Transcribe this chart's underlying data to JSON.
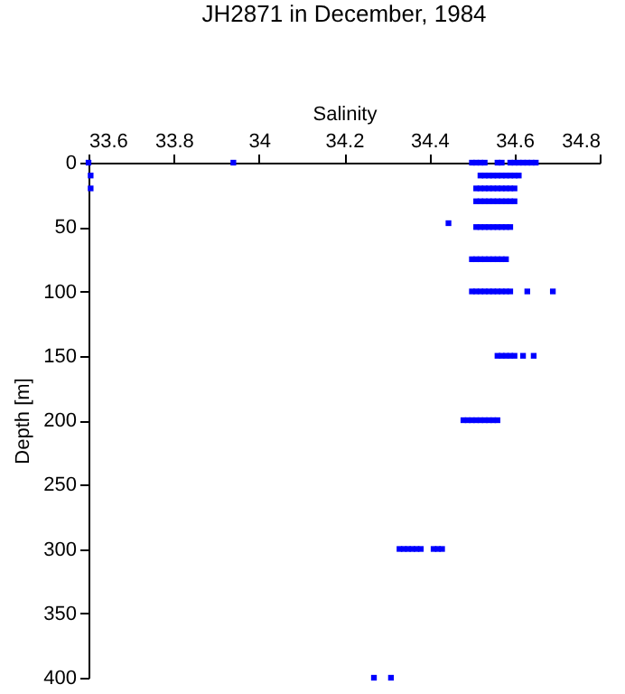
{
  "chart_data": {
    "type": "scatter",
    "title": "JH2871 in December, 1984",
    "xlabel": "Salinity",
    "ylabel": "Depth [m]",
    "xlim": [
      33.6,
      34.8
    ],
    "xticks": [
      33.6,
      33.8,
      34,
      34.2,
      34.4,
      34.6,
      34.8
    ],
    "ylim": [
      400,
      0
    ],
    "yticks": [
      0,
      50,
      100,
      150,
      200,
      250,
      300,
      350,
      400
    ],
    "grid": false,
    "marker": "square",
    "series": [
      {
        "color": "#0000ff",
        "x": [
          33.6,
          33.94,
          34.5,
          34.51,
          34.52,
          34.53,
          34.56,
          34.57,
          34.59,
          34.6,
          34.61,
          34.62,
          34.63,
          34.64,
          34.65,
          33.605,
          34.52,
          34.53,
          34.54,
          34.55,
          34.56,
          34.57,
          34.58,
          34.59,
          34.6,
          34.61,
          33.605,
          34.51,
          34.52,
          34.53,
          34.54,
          34.55,
          34.56,
          34.57,
          34.58,
          34.59,
          34.6,
          34.51,
          34.52,
          34.53,
          34.54,
          34.55,
          34.56,
          34.57,
          34.58,
          34.59,
          34.6,
          34.445,
          34.51,
          34.52,
          34.53,
          34.54,
          34.55,
          34.56,
          34.57,
          34.58,
          34.59,
          34.5,
          34.51,
          34.52,
          34.53,
          34.54,
          34.55,
          34.56,
          34.57,
          34.58,
          34.5,
          34.51,
          34.52,
          34.53,
          34.54,
          34.55,
          34.56,
          34.57,
          34.58,
          34.59,
          34.63,
          34.69,
          34.56,
          34.57,
          34.58,
          34.59,
          34.6,
          34.62,
          34.645,
          34.48,
          34.49,
          34.5,
          34.51,
          34.52,
          34.53,
          34.54,
          34.55,
          34.56,
          34.33,
          34.34,
          34.35,
          34.36,
          34.37,
          34.38,
          34.41,
          34.42,
          34.43,
          34.27,
          34.31
        ],
        "values": [
          0,
          0,
          0,
          0,
          0,
          0,
          0,
          0,
          0,
          0,
          0,
          0,
          0,
          0,
          0,
          10,
          10,
          10,
          10,
          10,
          10,
          10,
          10,
          10,
          10,
          10,
          20,
          20,
          20,
          20,
          20,
          20,
          20,
          20,
          20,
          20,
          20,
          30,
          30,
          30,
          30,
          30,
          30,
          30,
          30,
          30,
          30,
          47,
          50,
          50,
          50,
          50,
          50,
          50,
          50,
          50,
          50,
          75,
          75,
          75,
          75,
          75,
          75,
          75,
          75,
          75,
          100,
          100,
          100,
          100,
          100,
          100,
          100,
          100,
          100,
          100,
          100,
          100,
          150,
          150,
          150,
          150,
          150,
          150,
          150,
          200,
          200,
          200,
          200,
          200,
          200,
          200,
          200,
          200,
          300,
          300,
          300,
          300,
          300,
          300,
          300,
          300,
          300,
          400,
          400
        ]
      }
    ]
  }
}
